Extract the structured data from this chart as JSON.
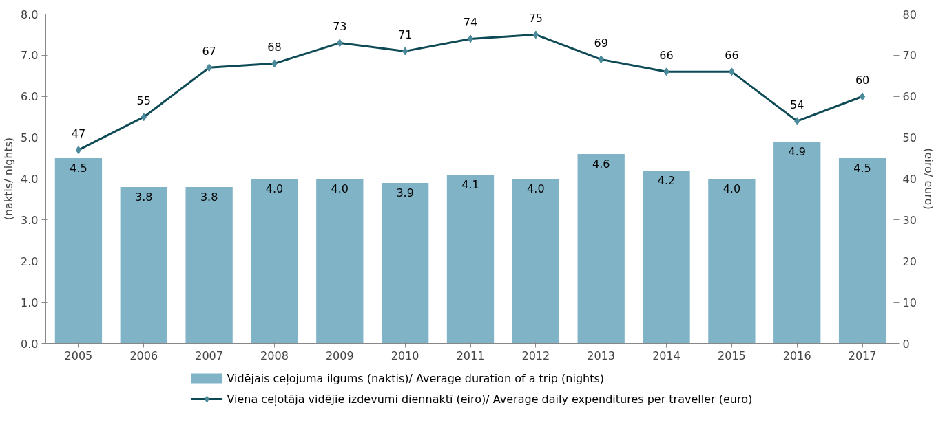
{
  "chart_data": {
    "type": "bar",
    "categories": [
      "2005",
      "2006",
      "2007",
      "2008",
      "2009",
      "2010",
      "2011",
      "2012",
      "2013",
      "2014",
      "2015",
      "2016",
      "2017"
    ],
    "ylabel": "(naktis/ nights)",
    "y2label": "(eiro/ euro)",
    "ylim": [
      0,
      8
    ],
    "yticks": [
      {
        "value": 0,
        "label": "0.0"
      },
      {
        "value": 1,
        "label": "1.0"
      },
      {
        "value": 2,
        "label": "2.0"
      },
      {
        "value": 3,
        "label": "3.0"
      },
      {
        "value": 4,
        "label": "4.0"
      },
      {
        "value": 5,
        "label": "5.0"
      },
      {
        "value": 6,
        "label": "6.0"
      },
      {
        "value": 7,
        "label": "7.0"
      },
      {
        "value": 8,
        "label": "8.0"
      }
    ],
    "y2lim": [
      0,
      80
    ],
    "y2ticks": [
      0,
      10,
      20,
      30,
      40,
      50,
      60,
      70,
      80
    ],
    "grid": false,
    "legend": "bottom",
    "series": [
      {
        "name": "Vidējais ceļojuma ilgums (naktis)/ Average duration of a trip (nights)",
        "color": "#7fb3c5",
        "values": [
          4.5,
          3.8,
          3.8,
          4.0,
          4.0,
          3.9,
          4.1,
          4.0,
          4.6,
          4.2,
          4.0,
          4.9,
          4.5
        ],
        "value_labels": [
          "4.5",
          "3.8",
          "3.8",
          "4.0",
          "4.0",
          "3.9",
          "4.1",
          "4.0",
          "4.6",
          "4.2",
          "4.0",
          "4.9",
          "4.5"
        ]
      },
      {
        "name": "Viena ceļotāja vidējie izdevumi diennaktī (eiro)/ Average daily expenditures per traveller (euro)",
        "type": "line",
        "axis": "y2",
        "marker": "diamond",
        "line_style": "solid",
        "color": "#0d4a55",
        "values": [
          47,
          55,
          67,
          68,
          73,
          71,
          74,
          75,
          69,
          66,
          66,
          54,
          60
        ],
        "value_labels": [
          "47",
          "55",
          "67",
          "68",
          "73",
          "71",
          "74",
          "75",
          "69",
          "66",
          "66",
          "54",
          "60"
        ]
      }
    ]
  }
}
